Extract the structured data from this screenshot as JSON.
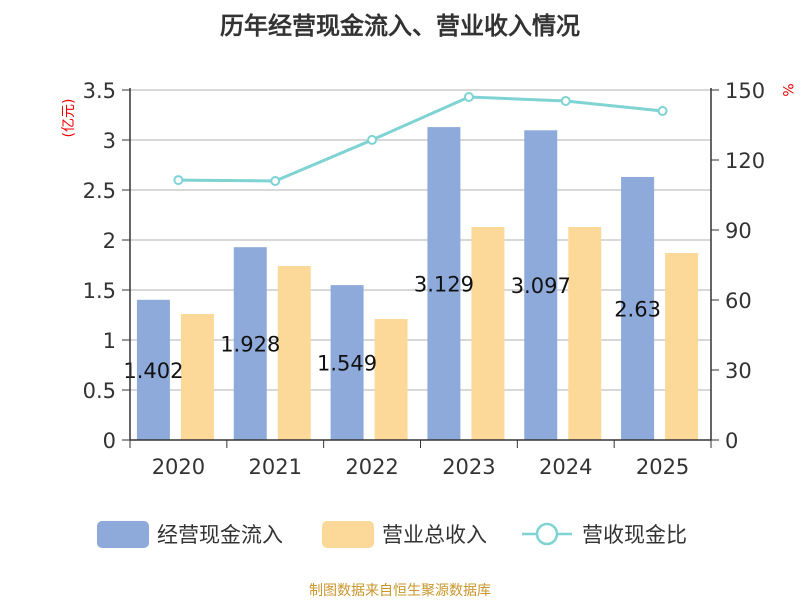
{
  "title": "历年经营现金流入、营业收入情况",
  "footer": "制图数据来自恒生聚源数据库",
  "chart_data": {
    "type": "bar",
    "title": "历年经营现金流入、营业收入情况",
    "categories": [
      "2020",
      "2021",
      "2022",
      "2023",
      "2024",
      "2025"
    ],
    "y_left": {
      "label": "(亿元)",
      "range": [
        0,
        3.5
      ],
      "ticks": [
        "0",
        "0.5",
        "1",
        "1.5",
        "2",
        "2.5",
        "3",
        "3.5"
      ]
    },
    "y_right": {
      "label": "%",
      "range": [
        0,
        150
      ],
      "ticks": [
        "0",
        "30",
        "60",
        "90",
        "120",
        "150"
      ]
    },
    "grid": true,
    "legend_position": "bottom",
    "series": [
      {
        "name": "经营现金流入",
        "type": "bar",
        "axis": "left",
        "color": "#8eaadb",
        "values": [
          1.402,
          1.928,
          1.549,
          3.129,
          3.097,
          2.63
        ],
        "labels": [
          "1.402",
          "1.928",
          "1.549",
          "3.129",
          "3.097",
          "2.63"
        ]
      },
      {
        "name": "营业总收入",
        "type": "bar",
        "axis": "left",
        "color": "#fdd999",
        "values": [
          1.26,
          1.74,
          1.21,
          2.13,
          2.13,
          1.87
        ]
      },
      {
        "name": "营收现金比",
        "type": "line",
        "axis": "right",
        "color": "#7fd3d3",
        "values": [
          111.4,
          111.0,
          128.6,
          147.0,
          145.3,
          141.0
        ]
      }
    ]
  }
}
